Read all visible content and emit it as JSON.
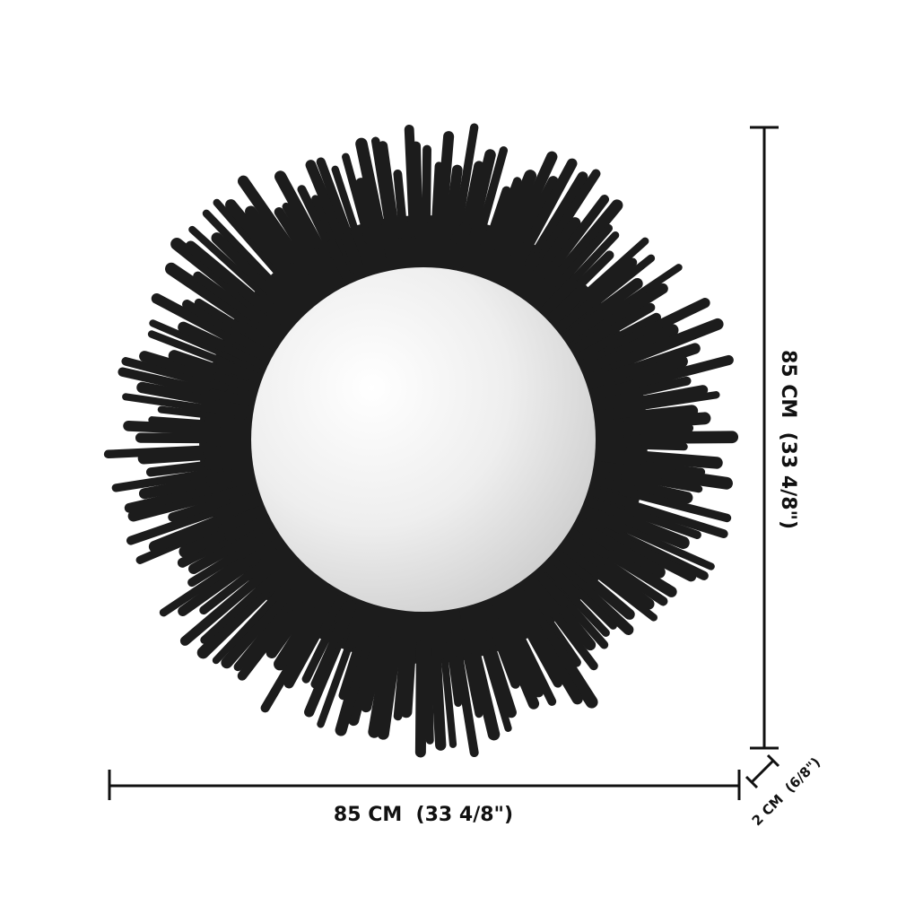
{
  "product": {
    "name": "sunburst-round-mirror",
    "frame_color": "#1c1c1c",
    "glass_color": "#e6e6e6"
  },
  "dimensions": {
    "width_label": "85 CM  (33 4/8\")",
    "height_label": "85 CM  (33 4/8\")",
    "depth_label": "2 CM  (6/8\")"
  }
}
